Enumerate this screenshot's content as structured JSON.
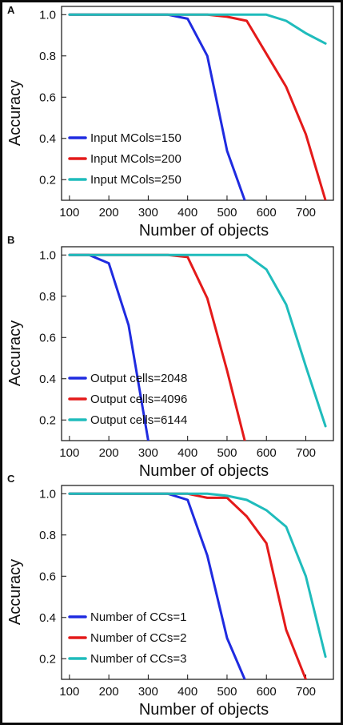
{
  "chart_data": [
    {
      "type": "line",
      "panel": "A",
      "xlabel": "Number of objects",
      "ylabel": "Accuracy",
      "xticks": [
        100,
        200,
        300,
        400,
        500,
        600,
        700
      ],
      "yticks": [
        0.2,
        0.4,
        0.6,
        0.8,
        1.0
      ],
      "ytick_labels": [
        "0.2",
        "0.4",
        "0.6",
        "0.8",
        "1.0"
      ],
      "xlim": [
        80,
        770
      ],
      "ylim": [
        0.1,
        1.04
      ],
      "series": [
        {
          "name": "Input MCols=150",
          "color": "#1f2be0",
          "x": [
            100,
            150,
            200,
            250,
            300,
            350,
            400,
            450,
            500,
            545
          ],
          "y": [
            1.0,
            1.0,
            1.0,
            1.0,
            1.0,
            1.0,
            0.98,
            0.8,
            0.34,
            0.1
          ]
        },
        {
          "name": "Input MCols=200",
          "color": "#e41a1a",
          "x": [
            100,
            150,
            200,
            250,
            300,
            350,
            400,
            450,
            500,
            550,
            600,
            650,
            700,
            750
          ],
          "y": [
            1.0,
            1.0,
            1.0,
            1.0,
            1.0,
            1.0,
            1.0,
            1.0,
            0.99,
            0.97,
            0.81,
            0.65,
            0.42,
            0.1
          ]
        },
        {
          "name": "Input MCols=250",
          "color": "#1fbcbc",
          "x": [
            100,
            150,
            200,
            250,
            300,
            350,
            400,
            450,
            500,
            550,
            600,
            650,
            700,
            750
          ],
          "y": [
            1.0,
            1.0,
            1.0,
            1.0,
            1.0,
            1.0,
            1.0,
            1.0,
            1.0,
            1.0,
            1.0,
            0.97,
            0.91,
            0.86
          ]
        }
      ]
    },
    {
      "type": "line",
      "panel": "B",
      "xlabel": "Number of objects",
      "ylabel": "Accuracy",
      "xticks": [
        100,
        200,
        300,
        400,
        500,
        600,
        700
      ],
      "yticks": [
        0.2,
        0.4,
        0.6,
        0.8,
        1.0
      ],
      "ytick_labels": [
        "0.2",
        "0.4",
        "0.6",
        "0.8",
        "1.0"
      ],
      "xlim": [
        80,
        770
      ],
      "ylim": [
        0.1,
        1.04
      ],
      "series": [
        {
          "name": "Output cells=2048",
          "color": "#1f2be0",
          "x": [
            100,
            150,
            200,
            250,
            300
          ],
          "y": [
            1.0,
            1.0,
            0.96,
            0.66,
            0.1
          ]
        },
        {
          "name": "Output cells=4096",
          "color": "#e41a1a",
          "x": [
            100,
            150,
            200,
            250,
            300,
            350,
            400,
            450,
            500,
            545
          ],
          "y": [
            1.0,
            1.0,
            1.0,
            1.0,
            1.0,
            1.0,
            0.99,
            0.79,
            0.44,
            0.1
          ]
        },
        {
          "name": "Output cells=6144",
          "color": "#1fbcbc",
          "x": [
            100,
            150,
            200,
            250,
            300,
            350,
            400,
            450,
            500,
            550,
            600,
            650,
            700,
            750
          ],
          "y": [
            1.0,
            1.0,
            1.0,
            1.0,
            1.0,
            1.0,
            1.0,
            1.0,
            1.0,
            1.0,
            0.93,
            0.76,
            0.46,
            0.17
          ]
        }
      ]
    },
    {
      "type": "line",
      "panel": "C",
      "xlabel": "Number of objects",
      "ylabel": "Accuracy",
      "xticks": [
        100,
        200,
        300,
        400,
        500,
        600,
        700
      ],
      "yticks": [
        0.2,
        0.4,
        0.6,
        0.8,
        1.0
      ],
      "ytick_labels": [
        "0.2",
        "0.4",
        "0.6",
        "0.8",
        "1.0"
      ],
      "xlim": [
        80,
        770
      ],
      "ylim": [
        0.1,
        1.04
      ],
      "series": [
        {
          "name": "Number of CCs=1",
          "color": "#1f2be0",
          "x": [
            100,
            150,
            200,
            250,
            300,
            350,
            400,
            450,
            500,
            545
          ],
          "y": [
            1.0,
            1.0,
            1.0,
            1.0,
            1.0,
            1.0,
            0.97,
            0.7,
            0.3,
            0.1
          ]
        },
        {
          "name": "Number of CCs=2",
          "color": "#e41a1a",
          "x": [
            100,
            150,
            200,
            250,
            300,
            350,
            400,
            450,
            500,
            550,
            600,
            650,
            700
          ],
          "y": [
            1.0,
            1.0,
            1.0,
            1.0,
            1.0,
            1.0,
            1.0,
            0.98,
            0.98,
            0.89,
            0.76,
            0.34,
            0.1
          ]
        },
        {
          "name": "Number of CCs=3",
          "color": "#1fbcbc",
          "x": [
            100,
            150,
            200,
            250,
            300,
            350,
            400,
            450,
            500,
            550,
            600,
            650,
            700,
            750
          ],
          "y": [
            1.0,
            1.0,
            1.0,
            1.0,
            1.0,
            1.0,
            1.0,
            1.0,
            0.99,
            0.97,
            0.92,
            0.84,
            0.6,
            0.21
          ]
        }
      ]
    }
  ]
}
